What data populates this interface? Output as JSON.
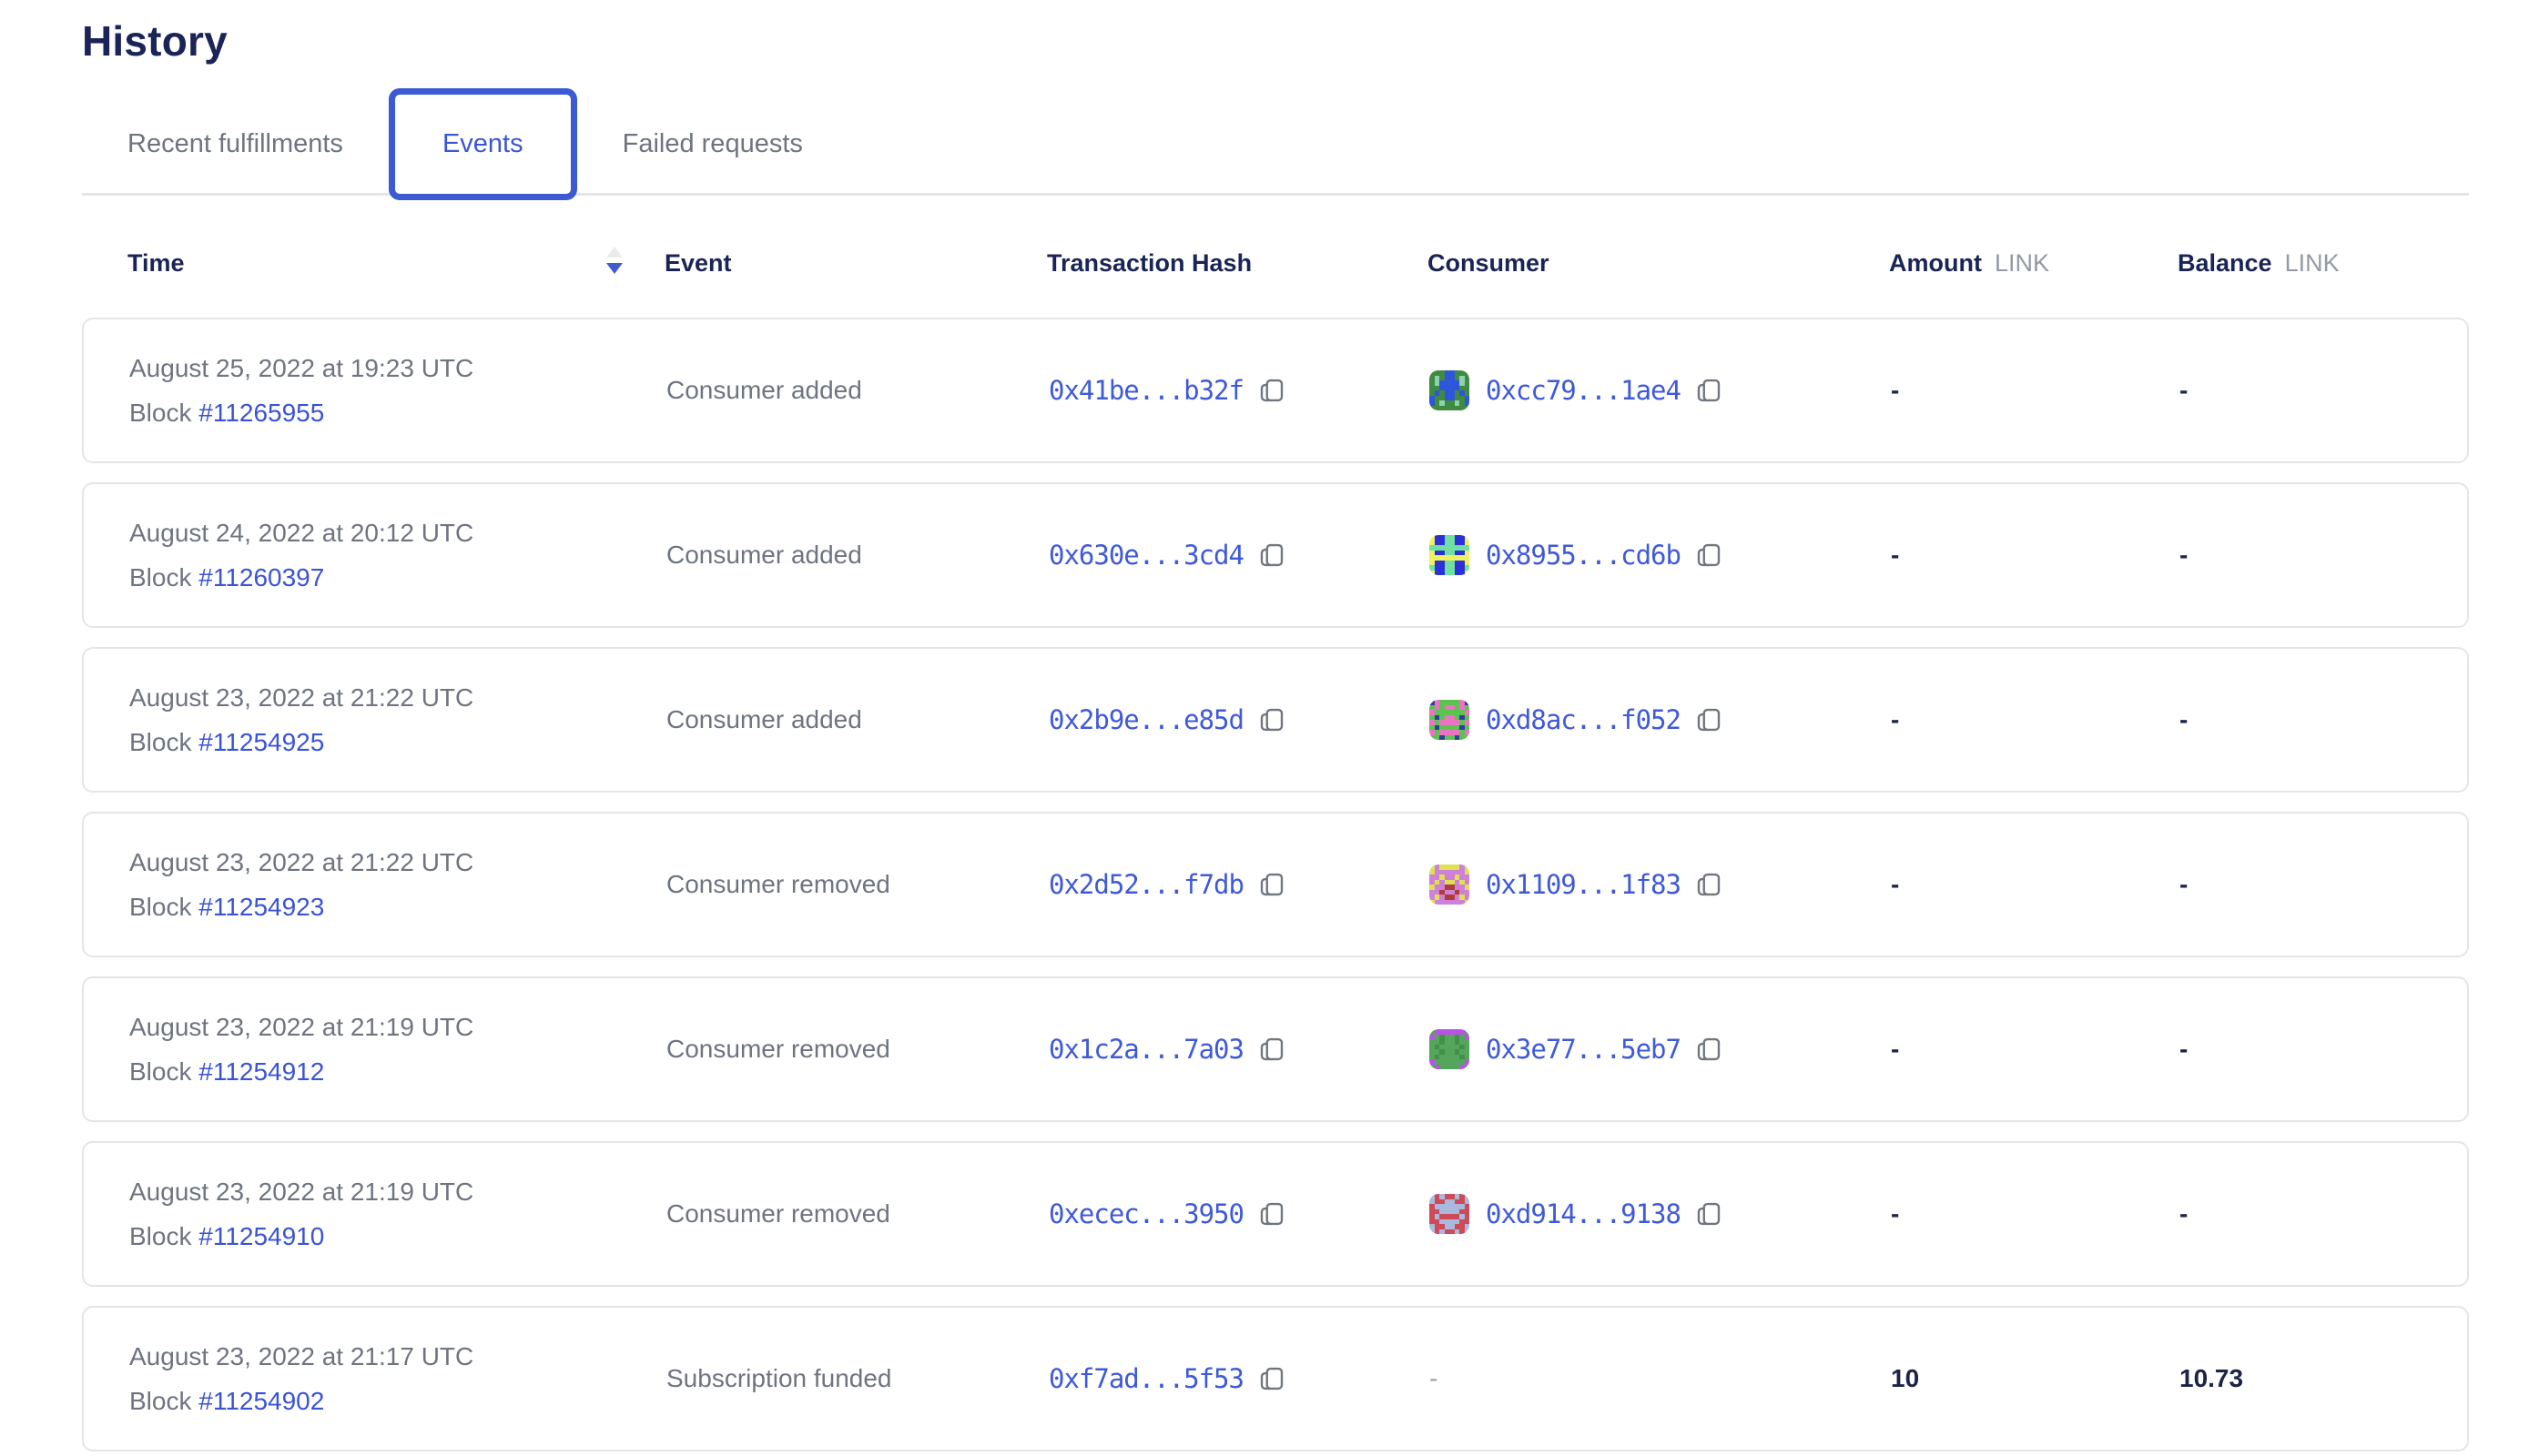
{
  "page": {
    "title": "History"
  },
  "tabs": [
    {
      "label": "Recent fulfillments",
      "active": false
    },
    {
      "label": "Events",
      "active": true
    },
    {
      "label": "Failed requests",
      "active": false
    }
  ],
  "table": {
    "columns": {
      "time": "Time",
      "event": "Event",
      "tx_hash": "Transaction Hash",
      "consumer": "Consumer",
      "amount": "Amount",
      "balance": "Balance",
      "unit": "LINK"
    },
    "sort": {
      "column": "time",
      "direction": "desc"
    },
    "block_label": "Block",
    "rows": [
      {
        "date": "August 25, 2022 at 19:23 UTC",
        "block": "#11265955",
        "event": "Consumer added",
        "tx": "0x41be...b32f",
        "consumer": "0xcc79...1ae4",
        "amount": "-",
        "balance": "-",
        "avatar": {
          "bg": "#3f8b41",
          "fg": "#2f55dd",
          "spot": "#8ed1ad",
          "pattern": [
            "...ff...",
            ".s.ff.s.",
            ".sffffs.",
            "..ffff..",
            ".f.ff.f.",
            "f..ff..f",
            "f.s..s.f",
            "........"
          ]
        }
      },
      {
        "date": "August 24, 2022 at 20:12 UTC",
        "block": "#11260397",
        "event": "Consumer added",
        "tx": "0x630e...3cd4",
        "consumer": "0x8955...cd6b",
        "amount": "-",
        "balance": "-",
        "avatar": {
          "bg": "#2d2fd8",
          "fg": "#eef161",
          "spot": "#6fe0a2",
          "pattern": [
            "f..ss..f",
            "f..ss..f",
            "ssssssss",
            "f..ss..f",
            "ffffffff",
            "f..ss..f",
            "s..ss..s",
            "f..ss..f"
          ]
        }
      },
      {
        "date": "August 23, 2022 at 21:22 UTC",
        "block": "#11254925",
        "event": "Consumer added",
        "tx": "0x2b9e...e85d",
        "consumer": "0xd8ac...f052",
        "amount": "-",
        "balance": "-",
        "avatar": {
          "bg": "#5cc252",
          "fg": "#ee72c2",
          "spot": "#2c3fa0",
          "pattern": [
            "sf....fs",
            ".f.ff.f.",
            "f......f",
            ".s.ff.s.",
            "f.ffff.f",
            ".s....s.",
            "f.ffff.f",
            "..s..s.."
          ]
        }
      },
      {
        "date": "August 23, 2022 at 21:22 UTC",
        "block": "#11254923",
        "event": "Consumer removed",
        "tx": "0x2d52...f7db",
        "consumer": "0x1109...1f83",
        "amount": "-",
        "balance": "-",
        "avatar": {
          "bg": "#cf80d8",
          "fg": "#dfe052",
          "spot": "#ae3c38",
          "pattern": [
            "f.ffff.f",
            "f......f",
            "..f..f..",
            ".f.ff.f.",
            "f..ss..f",
            "..s..s..",
            ".f.ss.f.",
            "f......f"
          ]
        }
      },
      {
        "date": "August 23, 2022 at 21:19 UTC",
        "block": "#11254912",
        "event": "Consumer removed",
        "tx": "0x1c2a...7a03",
        "consumer": "0x3e77...5eb7",
        "amount": "-",
        "balance": "-",
        "avatar": {
          "bg": "#55a55c",
          "fg": "#b953e6",
          "spot": "#42914b",
          "pattern": [
            ".ffffff.",
            "f.s..s.f",
            "..s..s..",
            ".s....s.",
            "..s..s..",
            ".s....s.",
            "f......f",
            ".f....f."
          ]
        }
      },
      {
        "date": "August 23, 2022 at 21:19 UTC",
        "block": "#11254910",
        "event": "Consumer removed",
        "tx": "0xecec...3950",
        "consumer": "0xd914...9138",
        "amount": "-",
        "balance": "-",
        "avatar": {
          "bg": "#cf4a58",
          "fg": "#a9b9dd",
          "spot": "#c23a49",
          "pattern": [
            "f.f..f.f",
            "f..ff..f",
            ".ffffff.",
            "..ffff..",
            ".f....f.",
            "..ffff..",
            "f..ff..f",
            "f.f..f.f"
          ]
        }
      },
      {
        "date": "August 23, 2022 at 21:17 UTC",
        "block": "#11254902",
        "event": "Subscription funded",
        "tx": "0xf7ad...5f53",
        "consumer": "-",
        "amount": "10",
        "balance": "10.73",
        "avatar": null
      }
    ]
  },
  "colors": {
    "brand_blue": "#3b5ad3",
    "link_blue": "#3a53d6",
    "hash_blue": "#3e59d9",
    "heading_navy": "#1a2456",
    "value_navy": "#1b2447",
    "text_gray": "#6e7480",
    "unit_gray": "#949aa5",
    "card_border": "#e4e5e8"
  }
}
